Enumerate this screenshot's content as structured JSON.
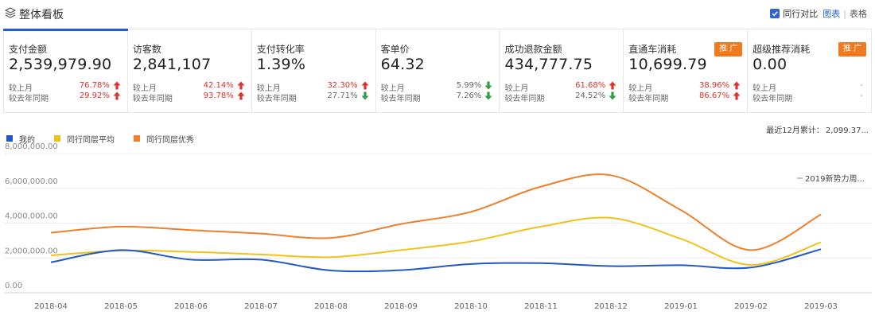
{
  "header": {
    "title": "整体看板",
    "compare_label": "同行对比",
    "chart_link": "图表",
    "separator": "|",
    "table_link": "表格"
  },
  "cards": [
    {
      "name": "支付金额",
      "value": "2,539,979.90",
      "mom_label": "较上月",
      "mom": "76.78%",
      "mom_dir": "up",
      "yoy_label": "较去年同期",
      "yoy": "29.92%",
      "yoy_dir": "up",
      "button": "",
      "active": true
    },
    {
      "name": "访客数",
      "value": "2,841,107",
      "mom_label": "较上月",
      "mom": "42.14%",
      "mom_dir": "up",
      "yoy_label": "较去年同期",
      "yoy": "93.78%",
      "yoy_dir": "up",
      "button": ""
    },
    {
      "name": "支付转化率",
      "value": "1.39%",
      "mom_label": "较上月",
      "mom": "32.30%",
      "mom_dir": "up",
      "yoy_label": "较去年同期",
      "yoy": "27.71%",
      "yoy_dir": "down",
      "button": ""
    },
    {
      "name": "客单价",
      "value": "64.32",
      "mom_label": "较上月",
      "mom": "5.99%",
      "mom_dir": "down",
      "yoy_label": "较去年同期",
      "yoy": "7.26%",
      "yoy_dir": "down",
      "button": ""
    },
    {
      "name": "成功退款金额",
      "value": "434,777.75",
      "mom_label": "较上月",
      "mom": "61.68%",
      "mom_dir": "up",
      "yoy_label": "较去年同期",
      "yoy": "24.52%",
      "yoy_dir": "down",
      "button": ""
    },
    {
      "name": "直通车消耗",
      "value": "10,699.79",
      "mom_label": "较上月",
      "mom": "38.96%",
      "mom_dir": "up",
      "yoy_label": "较去年同期",
      "yoy": "86.67%",
      "yoy_dir": "up",
      "button": "推 广"
    },
    {
      "name": "超级推荐消耗",
      "value": "0.00",
      "mom_label": "较上月",
      "mom": "-",
      "mom_dir": "none",
      "yoy_label": "较去年同期",
      "yoy": "-",
      "yoy_dir": "none",
      "button": "推 广"
    }
  ],
  "summary": {
    "label": "最近12月累计：",
    "value": "2,099.37..."
  },
  "series_tag": "2019新势力周...",
  "colors": {
    "accent": "#1e60d6",
    "up": "#e0312c",
    "down": "#2e9e3e",
    "promo": "#f07a1e"
  },
  "chart_data": {
    "type": "line",
    "categories": [
      "2018-04",
      "2018-05",
      "2018-06",
      "2018-07",
      "2018-08",
      "2018-09",
      "2018-10",
      "2018-11",
      "2018-12",
      "2019-01",
      "2019-02",
      "2019-03"
    ],
    "y_ticks": [
      "0.00",
      "2,000,000.00",
      "4,000,000.00",
      "6,000,000.00",
      "8,000,000.00"
    ],
    "ylim": [
      0,
      8000000
    ],
    "grid": true,
    "legend_position": "top-left",
    "series": [
      {
        "name": "我的",
        "color": "#2258c8",
        "values": [
          1750000,
          2450000,
          1900000,
          1900000,
          1280000,
          1300000,
          1650000,
          1700000,
          1530000,
          1580000,
          1450000,
          2500000
        ]
      },
      {
        "name": "同行同层平均",
        "color": "#f2c21b",
        "values": [
          2150000,
          2420000,
          2350000,
          2200000,
          2050000,
          2450000,
          2950000,
          3800000,
          4300000,
          3100000,
          1600000,
          2900000
        ]
      },
      {
        "name": "同行同层优秀",
        "color": "#f07f2c",
        "values": [
          3450000,
          3800000,
          3600000,
          3400000,
          3150000,
          3950000,
          4650000,
          6100000,
          6750000,
          4750000,
          2450000,
          4500000
        ]
      }
    ]
  }
}
